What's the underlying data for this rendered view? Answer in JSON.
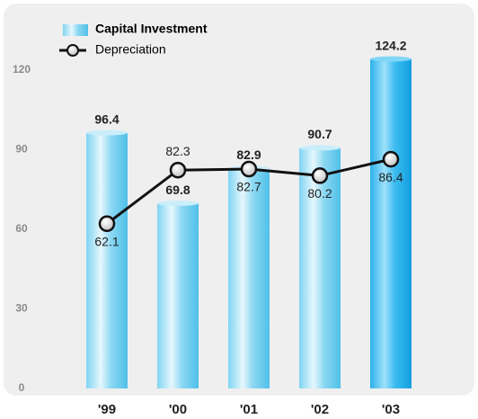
{
  "chart_data": {
    "type": "bar",
    "categories": [
      "'99",
      "'00",
      "'01",
      "'02",
      "'03"
    ],
    "series": [
      {
        "name": "Capital Investment",
        "type": "bar",
        "color": "#5cc8ec",
        "values": [
          96.4,
          69.8,
          82.9,
          90.7,
          124.2
        ]
      },
      {
        "name": "Depreciation",
        "type": "line",
        "color": "#111111",
        "values": [
          62.1,
          82.3,
          82.7,
          80.2,
          86.4
        ]
      }
    ],
    "ylim": [
      0,
      120
    ],
    "yticks": [
      0,
      30,
      60,
      90,
      120
    ],
    "legend": "top-left"
  }
}
